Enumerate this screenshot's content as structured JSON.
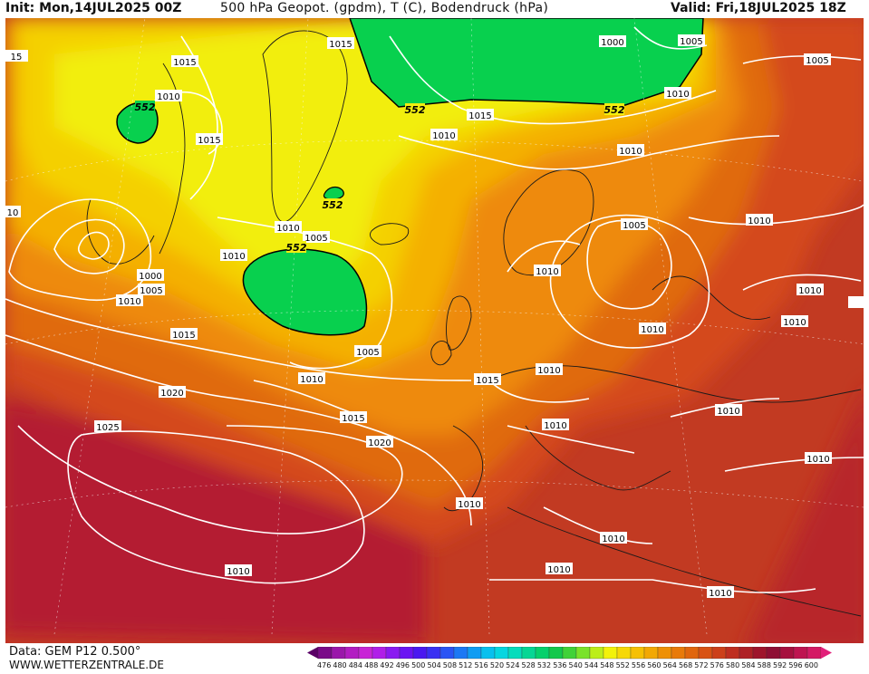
{
  "header": {
    "init": "Init: Mon,14JUL2025 00Z",
    "title": "500 hPa Geopot. (gpdm), T (C), Bodendruck (hPa)",
    "valid": "Valid: Fri,18JUL2025 18Z"
  },
  "footer": {
    "data_source": "Data: GEM P12 0.500°",
    "website": "WWW.WETTERZENTRALE.DE"
  },
  "map": {
    "background_color": "#c23a22",
    "isobar_color": "#ffffff",
    "height_contour_color": "#000000",
    "isobar_labels": [
      "1015",
      "1015",
      "1010",
      "1015",
      "1000",
      "1005",
      "1005",
      "1010",
      "1015",
      "1010",
      "1010",
      "1010",
      "1005",
      "1010",
      "1000",
      "1005",
      "1010",
      "1015",
      "1005",
      "1010",
      "1005",
      "1010",
      "1010",
      "1015",
      "1020",
      "1025",
      "1020",
      "1015",
      "1010",
      "1010",
      "1010",
      "1010",
      "1010",
      "1010",
      "1010",
      "1010",
      "1010",
      "1010",
      "1010",
      "1010",
      "1010",
      "1025",
      "1010",
      "020",
      "15",
      "10"
    ],
    "height_labels": [
      "552",
      "552",
      "552",
      "552",
      "552"
    ]
  },
  "legend": {
    "colors": [
      "#5a0066",
      "#7a0a88",
      "#9a16aa",
      "#b21cc2",
      "#c824d6",
      "#b01ee8",
      "#8a1af0",
      "#6a14f2",
      "#4a18f0",
      "#3a30f2",
      "#2a54f4",
      "#1c78f4",
      "#109cf2",
      "#08c0ee",
      "#06d6e0",
      "#06dcbc",
      "#06d694",
      "#06d06c",
      "#14c84c",
      "#40d238",
      "#7ae22a",
      "#bcee1a",
      "#f2f20a",
      "#f6d806",
      "#f6c004",
      "#f2a804",
      "#ee9006",
      "#e87a0a",
      "#e0660e",
      "#d85214",
      "#cc401a",
      "#be2e20",
      "#ae2026",
      "#9e142c",
      "#8e0e34",
      "#a6103e",
      "#be1450",
      "#d41a64",
      "#e2207a"
    ],
    "ticks": [
      "476",
      "480",
      "484",
      "488",
      "492",
      "496",
      "500",
      "504",
      "508",
      "512",
      "516",
      "520",
      "524",
      "528",
      "532",
      "536",
      "540",
      "544",
      "548",
      "552",
      "556",
      "560",
      "564",
      "568",
      "572",
      "576",
      "580",
      "584",
      "588",
      "592",
      "596",
      "600"
    ]
  }
}
